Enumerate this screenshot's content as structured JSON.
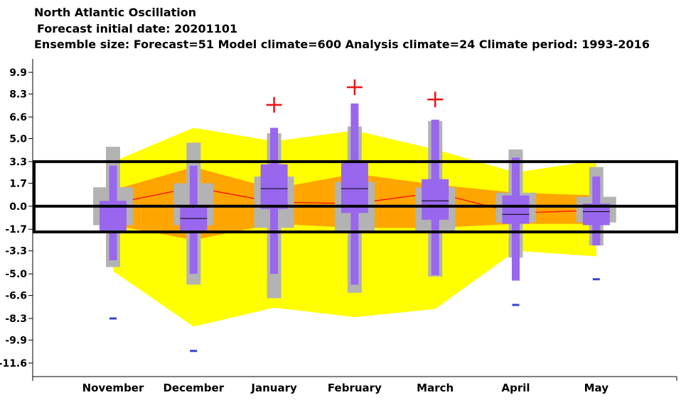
{
  "chart_data": {
    "type": "box",
    "title": "North Atlantic Oscillation",
    "subtitle": "Forecast initial date: 20201101",
    "subtitle2": "Ensemble size: Forecast=51 Model climate=600 Analysis climate=24   Climate period: 1993-2016",
    "categories": [
      "November",
      "December",
      "January",
      "February",
      "March",
      "April",
      "May"
    ],
    "y_ticks": [
      "9.9",
      "8.3",
      "6.6",
      "5.0",
      "3.3",
      "1.7",
      "0.0",
      "-1.7",
      "-3.3",
      "-5.0",
      "-6.6",
      "-8.3",
      "-9.9",
      "-11.6"
    ],
    "ylim": [
      -12.6,
      10.9
    ],
    "highlight_band": [
      -1.9,
      3.3
    ],
    "zero_line": 0,
    "analysis_climate_band": {
      "outer_upper": [
        3.3,
        5.8,
        4.8,
        5.6,
        4.2,
        2.5,
        3.4
      ],
      "outer_lower": [
        -4.8,
        -8.9,
        -7.5,
        -8.2,
        -7.6,
        -3.3,
        -3.7
      ],
      "inner_upper": [
        1.2,
        2.9,
        1.3,
        2.4,
        1.6,
        1.0,
        0.8
      ],
      "inner_lower": [
        -1.4,
        -2.5,
        -1.3,
        -1.6,
        -1.6,
        -1.3,
        -1.3
      ]
    },
    "model_climate_median": [
      0.2,
      1.4,
      0.3,
      0.2,
      1.0,
      -0.5,
      -0.3
    ],
    "model_climate_boxes": {
      "whisker_high": [
        4.4,
        4.7,
        5.4,
        5.9,
        6.3,
        4.2,
        2.9
      ],
      "q_upper": [
        1.4,
        1.7,
        2.2,
        1.8,
        1.4,
        1.0,
        0.7
      ],
      "q_lower": [
        -1.4,
        -1.4,
        -1.6,
        -1.8,
        -1.9,
        -1.2,
        -1.2
      ],
      "whisker_low": [
        -4.5,
        -5.8,
        -6.8,
        -6.4,
        -5.2,
        -3.8,
        -2.9
      ]
    },
    "forecast_boxes": {
      "max": [
        3.0,
        3.0,
        5.8,
        7.6,
        6.4,
        3.6,
        2.2
      ],
      "q_upper": [
        0.4,
        0.0,
        3.1,
        3.2,
        2.0,
        0.8,
        0.2
      ],
      "median": [
        0.0,
        -0.9,
        1.3,
        1.3,
        0.4,
        -0.6,
        -0.4
      ],
      "q_lower": [
        -1.8,
        -1.8,
        -0.2,
        -0.5,
        -1.0,
        -1.3,
        -1.4
      ],
      "min": [
        -4.0,
        -5.0,
        -5.0,
        -5.8,
        -5.1,
        -5.5,
        -2.9
      ]
    },
    "forecast_extremes_high": [
      null,
      null,
      7.5,
      8.8,
      7.9,
      null,
      null
    ],
    "forecast_extremes_low": [
      -8.3,
      -10.7,
      null,
      null,
      null,
      -7.3,
      -5.4
    ],
    "colors": {
      "outer_band": "#ffff00",
      "inner_band": "#ffa500",
      "model_box": "#b3b3b3",
      "forecast_box": "#9966ee",
      "median_line": "#ff0000",
      "high_extreme": "#ee1111",
      "low_extreme": "#3344cc",
      "frame": "#000000"
    }
  }
}
